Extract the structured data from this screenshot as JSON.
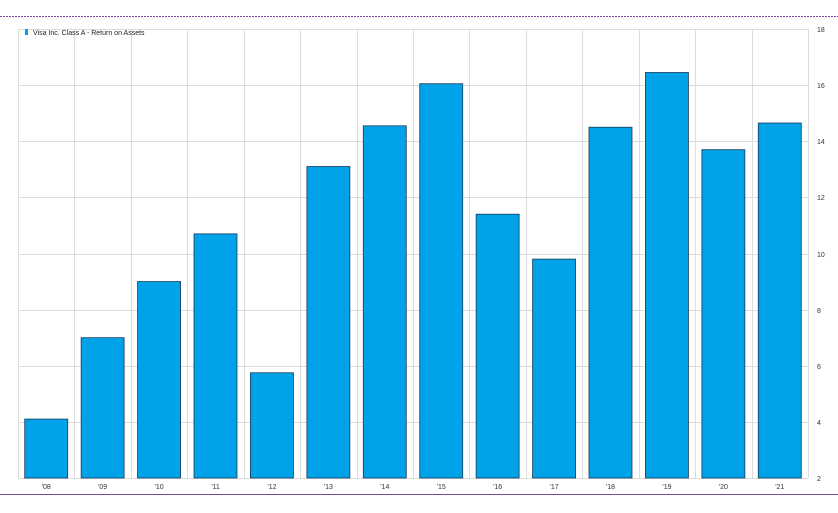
{
  "chart_data": {
    "type": "bar",
    "title": "",
    "xlabel": "",
    "ylabel": "",
    "categories": [
      "'08",
      "'09",
      "'10",
      "'11",
      "'12",
      "'13",
      "'14",
      "'15",
      "'16",
      "'17",
      "'18",
      "'19",
      "'20",
      "'21"
    ],
    "series": [
      {
        "name": "Visa Inc. Class A - Return on Assets",
        "values": [
          4.1,
          7.0,
          9.0,
          10.7,
          5.75,
          13.1,
          14.55,
          16.05,
          11.4,
          9.8,
          14.5,
          16.45,
          13.7,
          14.65
        ]
      }
    ],
    "ylim": [
      2,
      18
    ],
    "yticks": [
      "2",
      "4",
      "6",
      "8",
      "10",
      "12",
      "14",
      "16",
      "18"
    ],
    "grid": true,
    "legend_position": "top-left",
    "y_axis_side": "right",
    "colors": {
      "bar_fill": "#00a2e8",
      "bar_stroke": "#1a3a5a",
      "grid": "#dcdcdc",
      "frame_border": "#7b4aa0",
      "legend_marker": "#00a2e8"
    }
  }
}
